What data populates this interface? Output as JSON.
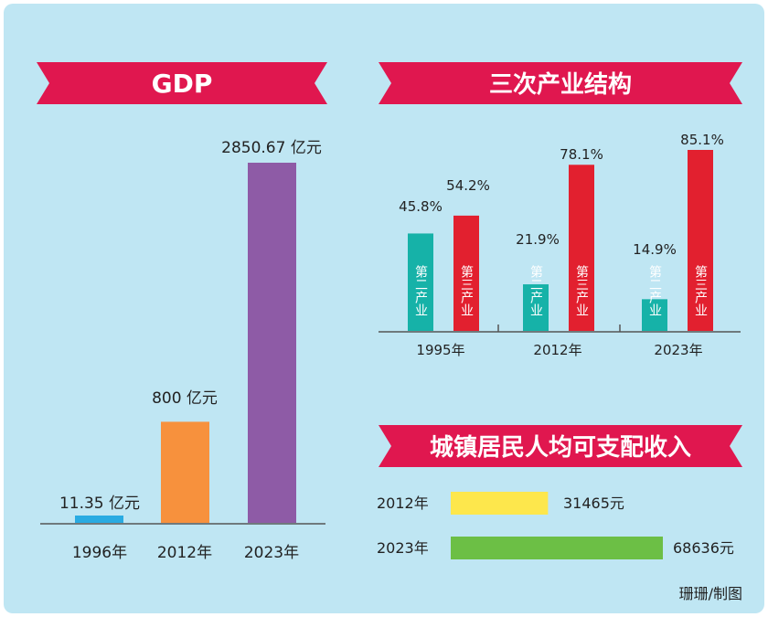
{
  "colors": {
    "background": "#bfe6f3",
    "banner": "#e0174f",
    "gdp_1996": "#29abe2",
    "gdp_2012": "#f7913d",
    "gdp_2023": "#8e5ba6",
    "secondary": "#16b2a8",
    "tertiary": "#e2202f",
    "income_2012": "#fde74c",
    "income_2023": "#6cbf45"
  },
  "credit": "珊珊/制图",
  "chart_data": [
    {
      "type": "bar",
      "title": "GDP",
      "categories": [
        "1996年",
        "2012年",
        "2023年"
      ],
      "values": [
        11.35,
        800,
        2850.67
      ],
      "value_labels": [
        "11.35 亿元",
        "800 亿元",
        "2850.67 亿元"
      ],
      "unit": "亿元",
      "ylim": [
        0,
        2850.67
      ]
    },
    {
      "type": "bar",
      "title": "三次产业结构",
      "categories": [
        "1995年",
        "2012年",
        "2023年"
      ],
      "series": [
        {
          "name": "第二产业",
          "values": [
            45.8,
            21.9,
            14.9
          ],
          "value_labels": [
            "45.8%",
            "21.9%",
            "14.9%"
          ]
        },
        {
          "name": "第三产业",
          "values": [
            54.2,
            78.1,
            85.1
          ],
          "value_labels": [
            "54.2%",
            "78.1%",
            "85.1%"
          ]
        }
      ],
      "unit": "%",
      "ylim": [
        0,
        85.1
      ]
    },
    {
      "type": "bar",
      "orientation": "horizontal",
      "title": "城镇居民人均可支配收入",
      "categories": [
        "2012年",
        "2023年"
      ],
      "values": [
        31465,
        68636
      ],
      "value_labels": [
        "31465元",
        "68636元"
      ],
      "unit": "元",
      "xlim": [
        0,
        68636
      ]
    }
  ]
}
